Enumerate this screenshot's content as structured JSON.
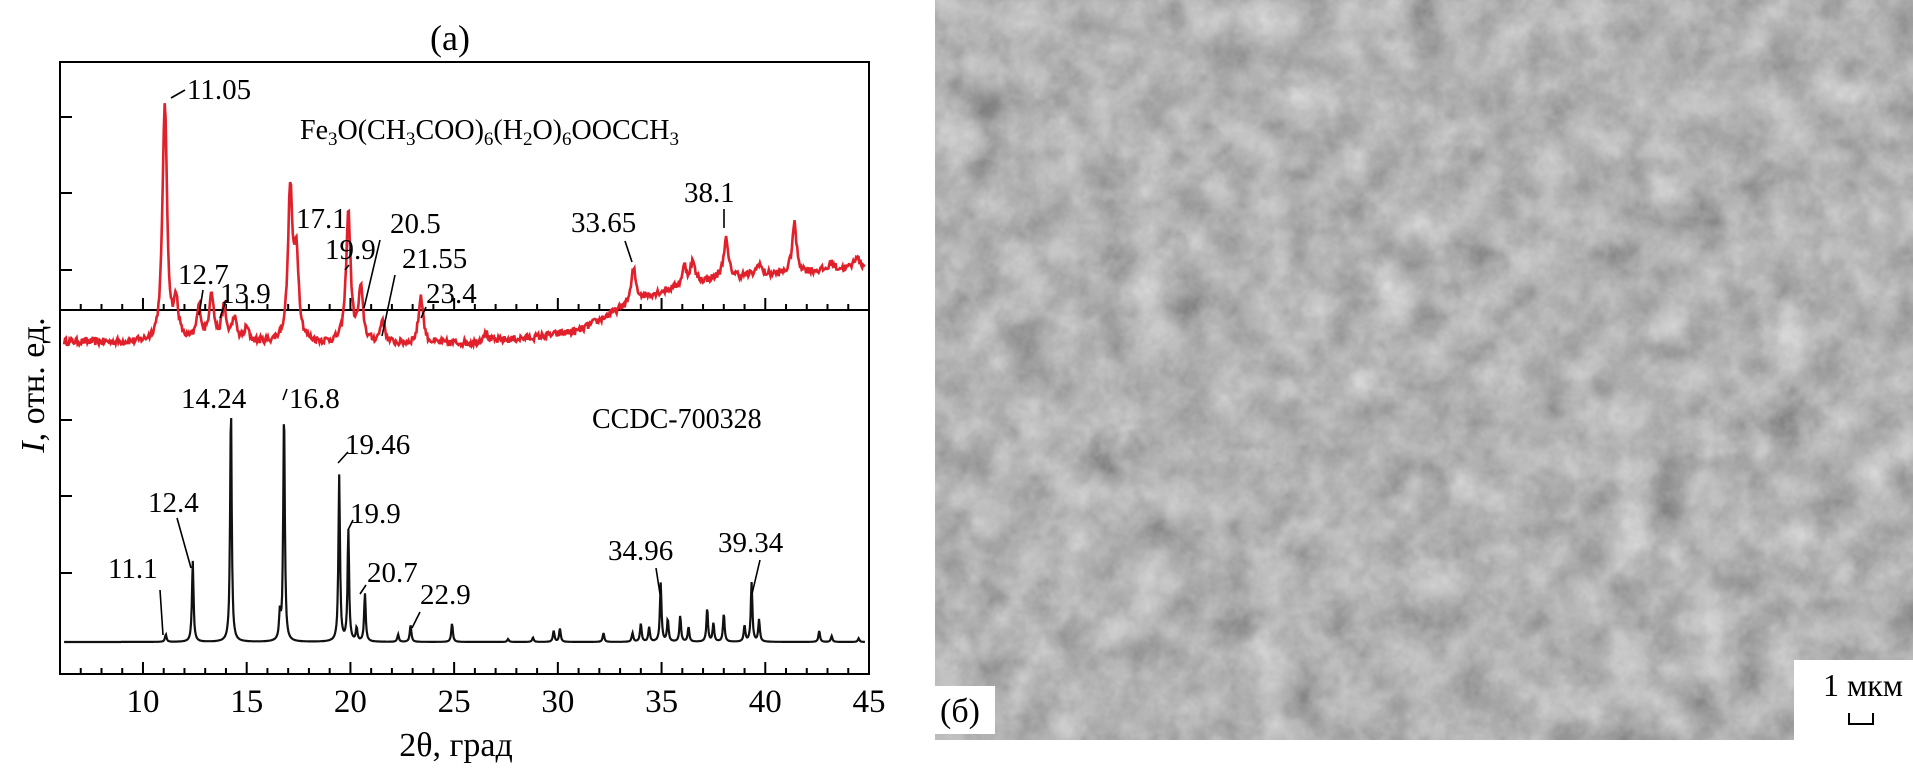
{
  "figure": {
    "panel_a_label": "(а)",
    "panel_b_label": "(б)",
    "scale_bar_label": "1 мкм"
  },
  "chart_data": {
    "type": "line",
    "xlabel": "2θ, град",
    "ylabel_italic": "I",
    "ylabel_rest": ", отн. ед.",
    "xlim": [
      6,
      45
    ],
    "xticks": [
      10,
      15,
      20,
      25,
      30,
      35,
      40,
      45
    ],
    "grid": false,
    "series": [
      {
        "name_parts": [
          {
            "t": "Fe",
            "sub": false
          },
          {
            "t": "3",
            "sub": true
          },
          {
            "t": "O(CH",
            "sub": false
          },
          {
            "t": "3",
            "sub": true
          },
          {
            "t": "COO)",
            "sub": false
          },
          {
            "t": "6",
            "sub": true
          },
          {
            "t": "(H",
            "sub": false
          },
          {
            "t": "2",
            "sub": true
          },
          {
            "t": "O)",
            "sub": false
          },
          {
            "t": "6",
            "sub": true
          },
          {
            "t": "OOCCH",
            "sub": false
          },
          {
            "t": "3",
            "sub": true
          }
        ],
        "color": "#e0202a",
        "baseline": 0.06,
        "background": [
          [
            6,
            0.07
          ],
          [
            10.5,
            0.06
          ],
          [
            16,
            0.06
          ],
          [
            22,
            0.05
          ],
          [
            26,
            0.06
          ],
          [
            29,
            0.1
          ],
          [
            31,
            0.14
          ],
          [
            32.5,
            0.25
          ],
          [
            34,
            0.36
          ],
          [
            36,
            0.44
          ],
          [
            38,
            0.5
          ],
          [
            41,
            0.52
          ],
          [
            45,
            0.57
          ]
        ],
        "peaks": [
          [
            11.05,
            1.6
          ],
          [
            11.6,
            0.25
          ],
          [
            12.7,
            0.22
          ],
          [
            13.3,
            0.33
          ],
          [
            13.9,
            0.22
          ],
          [
            14.4,
            0.15
          ],
          [
            15.0,
            0.09
          ],
          [
            17.1,
            1.0
          ],
          [
            17.4,
            0.55
          ],
          [
            19.9,
            0.88
          ],
          [
            20.5,
            0.35
          ],
          [
            21.55,
            0.16
          ],
          [
            23.4,
            0.32
          ],
          [
            26.5,
            0.07
          ],
          [
            33.65,
            0.22
          ],
          [
            36.1,
            0.12
          ],
          [
            36.5,
            0.14
          ],
          [
            38.1,
            0.25
          ],
          [
            39.7,
            0.08
          ],
          [
            41.4,
            0.33
          ],
          [
            43.2,
            0.05
          ],
          [
            44.4,
            0.08
          ]
        ],
        "labels": [
          {
            "text": "11.05",
            "x": 11.05
          },
          {
            "text": "12.7",
            "x": 12.7
          },
          {
            "text": "13.9",
            "x": 13.9
          },
          {
            "text": "17.1",
            "x": 17.1
          },
          {
            "text": "19.9",
            "x": 19.9
          },
          {
            "text": "20.5",
            "x": 20.5
          },
          {
            "text": "21.55",
            "x": 21.55
          },
          {
            "text": "23.4",
            "x": 23.4
          },
          {
            "text": "33.65",
            "x": 33.65
          },
          {
            "text": "38.1",
            "x": 38.1
          }
        ]
      },
      {
        "name": "CCDC-700328",
        "color": "#111111",
        "peaks": [
          [
            11.1,
            0.1
          ],
          [
            12.4,
            1.1
          ],
          [
            14.24,
            3.2
          ],
          [
            16.6,
            0.35
          ],
          [
            16.8,
            3.15
          ],
          [
            19.46,
            2.25
          ],
          [
            19.9,
            1.5
          ],
          [
            20.3,
            0.18
          ],
          [
            20.7,
            0.65
          ],
          [
            22.3,
            0.1
          ],
          [
            22.9,
            0.23
          ],
          [
            24.9,
            0.25
          ],
          [
            27.6,
            0.04
          ],
          [
            28.8,
            0.06
          ],
          [
            29.8,
            0.15
          ],
          [
            30.1,
            0.18
          ],
          [
            32.2,
            0.12
          ],
          [
            33.6,
            0.12
          ],
          [
            34.0,
            0.25
          ],
          [
            34.4,
            0.2
          ],
          [
            34.96,
            0.8
          ],
          [
            35.3,
            0.3
          ],
          [
            35.9,
            0.35
          ],
          [
            36.3,
            0.2
          ],
          [
            37.2,
            0.45
          ],
          [
            37.5,
            0.25
          ],
          [
            38.0,
            0.38
          ],
          [
            39.0,
            0.22
          ],
          [
            39.34,
            0.8
          ],
          [
            39.7,
            0.3
          ],
          [
            42.6,
            0.15
          ],
          [
            43.2,
            0.08
          ],
          [
            44.5,
            0.05
          ]
        ],
        "labels": [
          {
            "text": "11.1",
            "x": 11.1
          },
          {
            "text": "12.4",
            "x": 12.4
          },
          {
            "text": "14.24",
            "x": 14.24
          },
          {
            "text": "16.8",
            "x": 16.8
          },
          {
            "text": "19.46",
            "x": 19.46
          },
          {
            "text": "19.9",
            "x": 19.9
          },
          {
            "text": "20.7",
            "x": 20.7
          },
          {
            "text": "22.9",
            "x": 22.9
          },
          {
            "text": "34.96",
            "x": 34.96
          },
          {
            "text": "39.34",
            "x": 39.34
          }
        ]
      }
    ]
  }
}
